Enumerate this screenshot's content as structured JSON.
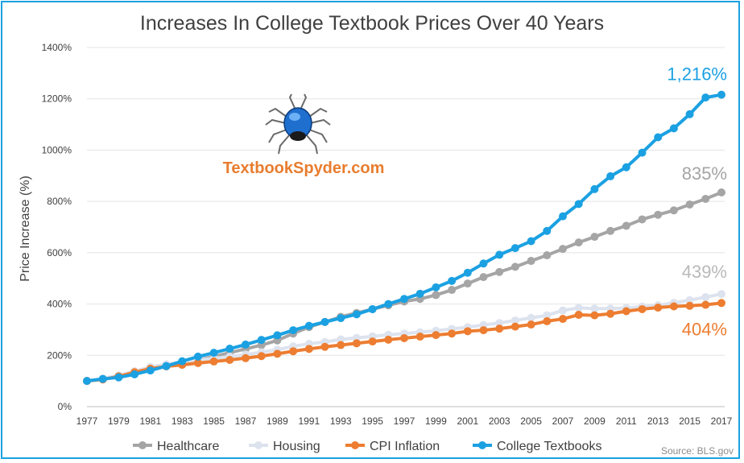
{
  "chart_data": {
    "type": "line",
    "title": "Increases In College Textbook Prices Over 40 Years",
    "ylabel": "Price Increase (%)",
    "xlabel": "",
    "ylim": [
      0,
      1400
    ],
    "yticks": [
      0,
      200,
      400,
      600,
      800,
      1000,
      1200,
      1400
    ],
    "ytick_labels": [
      "0%",
      "200%",
      "400%",
      "600%",
      "800%",
      "1000%",
      "1200%",
      "1400%"
    ],
    "x": [
      1977,
      1978,
      1979,
      1980,
      1981,
      1982,
      1983,
      1984,
      1985,
      1986,
      1987,
      1988,
      1989,
      1990,
      1991,
      1992,
      1993,
      1994,
      1995,
      1996,
      1997,
      1998,
      1999,
      2000,
      2001,
      2002,
      2003,
      2004,
      2005,
      2006,
      2007,
      2008,
      2009,
      2010,
      2011,
      2012,
      2013,
      2014,
      2015,
      2016,
      2017
    ],
    "xtick_labels": [
      "1977",
      "1979",
      "1981",
      "1983",
      "1985",
      "1987",
      "1989",
      "1991",
      "1993",
      "1995",
      "1997",
      "1999",
      "2001",
      "2003",
      "2005",
      "2007",
      "2009",
      "2011",
      "2013",
      "2015",
      "2017"
    ],
    "grid": true,
    "legend_position": "bottom",
    "series": [
      {
        "name": "Healthcare",
        "color": "#a5a5a5",
        "values": [
          100,
          108,
          118,
          131,
          147,
          160,
          172,
          182,
          195,
          210,
          225,
          240,
          258,
          285,
          310,
          330,
          350,
          365,
          380,
          395,
          410,
          420,
          435,
          455,
          480,
          505,
          525,
          545,
          568,
          590,
          615,
          640,
          662,
          685,
          705,
          730,
          748,
          765,
          788,
          810,
          835
        ],
        "end_label": "835%"
      },
      {
        "name": "Housing",
        "color": "#dde3ee",
        "values": [
          100,
          110,
          122,
          138,
          155,
          165,
          175,
          182,
          188,
          195,
          203,
          212,
          222,
          235,
          245,
          252,
          262,
          268,
          274,
          280,
          285,
          290,
          296,
          303,
          310,
          318,
          326,
          336,
          346,
          356,
          375,
          385,
          382,
          382,
          385,
          390,
          395,
          405,
          415,
          427,
          439
        ],
        "end_label": "439%"
      },
      {
        "name": "CPI Inflation",
        "color": "#ed7d31",
        "values": [
          100,
          106,
          118,
          134,
          148,
          157,
          163,
          170,
          176,
          182,
          189,
          197,
          206,
          216,
          225,
          233,
          240,
          247,
          254,
          261,
          267,
          273,
          279,
          285,
          294,
          298,
          304,
          312,
          320,
          333,
          342,
          358,
          356,
          362,
          372,
          380,
          386,
          391,
          393,
          397,
          404
        ],
        "end_label": "404%"
      },
      {
        "name": "College Textbooks",
        "color": "#1ba1e2",
        "values": [
          100,
          108,
          114,
          126,
          141,
          158,
          177,
          195,
          210,
          226,
          242,
          260,
          278,
          298,
          315,
          330,
          345,
          360,
          380,
          400,
          420,
          440,
          465,
          490,
          522,
          558,
          592,
          618,
          645,
          685,
          742,
          790,
          848,
          898,
          933,
          990,
          1050,
          1085,
          1140,
          1205,
          1216
        ],
        "end_label": "1,216%"
      }
    ]
  },
  "branding": {
    "text": "TextbookSpyder.com",
    "logo_icon": "spider-icon"
  },
  "source": "Source: BLS.gov"
}
